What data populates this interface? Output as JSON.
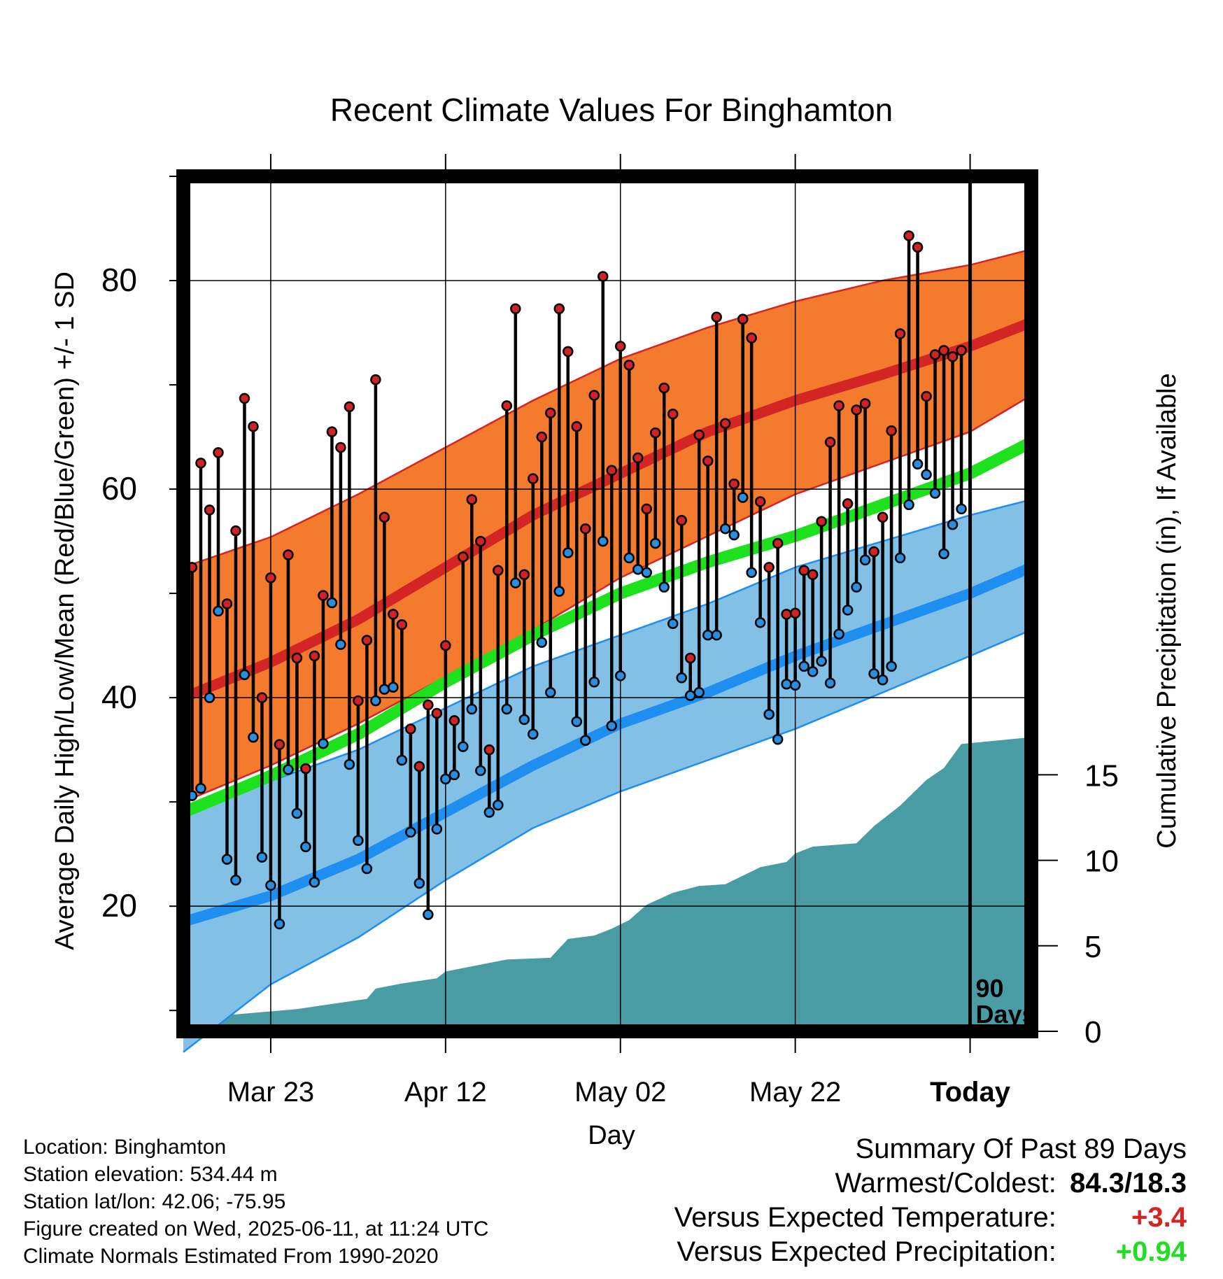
{
  "chart_data": {
    "type": "line",
    "title": "Recent Climate Values For Binghamton",
    "xlabel": "Day",
    "ylabel": "Average Daily High/Low/Mean (Red/Blue/Green) +/- 1 SD",
    "y2label": "Cumulative Precipitation (in), If Available",
    "ylim": [
      8,
      90
    ],
    "y_ticks": [
      "20",
      "40",
      "60",
      "80"
    ],
    "y2lim": [
      0,
      50
    ],
    "y2_ticks": [
      "0",
      "5",
      "10",
      "15"
    ],
    "x_start": "2025-03-13",
    "x_end": "2025-06-18",
    "x_ticks": [
      {
        "date": "2025-03-23",
        "label": "Mar 23"
      },
      {
        "date": "2025-04-12",
        "label": "Apr 12"
      },
      {
        "date": "2025-05-02",
        "label": "May 02"
      },
      {
        "date": "2025-05-22",
        "label": "May 22"
      },
      {
        "date": "2025-06-11",
        "label": "Today"
      }
    ],
    "today_marker": {
      "date": "2025-06-11",
      "label_line1": "90",
      "label_line2": "Days"
    },
    "colors": {
      "high_band": "#f47a2e",
      "high_line": "#d42525",
      "low_band": "#82c0e6",
      "low_line": "#1e8ef0",
      "mean_line": "#1de11d",
      "precip": "#4a9ca4",
      "high_point": "#d02424",
      "low_point": "#2a8ee0"
    },
    "normals": {
      "dates": [
        "2025-03-13",
        "2025-03-23",
        "2025-04-02",
        "2025-04-12",
        "2025-04-22",
        "2025-05-02",
        "2025-05-12",
        "2025-05-22",
        "2025-06-01",
        "2025-06-11",
        "2025-06-18"
      ],
      "high_upper": [
        52.5,
        55.4,
        59.5,
        64.0,
        68.5,
        72.5,
        75.5,
        78.0,
        80.0,
        81.5,
        83.0
      ],
      "high_mean": [
        40.0,
        43.4,
        47.5,
        52.5,
        57.5,
        61.5,
        65.5,
        68.5,
        71.0,
        73.7,
        76.0
      ],
      "high_lower": [
        30.0,
        33.5,
        37.5,
        42.0,
        46.5,
        51.5,
        55.5,
        59.5,
        62.5,
        65.5,
        69.0
      ],
      "mean": [
        29.0,
        32.5,
        36.5,
        41.5,
        46.0,
        50.0,
        53.0,
        55.5,
        58.5,
        61.5,
        64.5
      ],
      "low_upper": [
        29.0,
        32.0,
        35.0,
        39.0,
        43.0,
        46.0,
        49.0,
        52.5,
        55.0,
        57.5,
        59.0
      ],
      "low_mean": [
        18.5,
        21.0,
        24.5,
        29.0,
        33.5,
        37.5,
        40.5,
        44.0,
        47.0,
        50.0,
        52.5
      ],
      "low_lower": [
        6.0,
        12.5,
        17.0,
        22.5,
        27.5,
        31.0,
        34.0,
        37.0,
        40.5,
        44.0,
        46.5
      ]
    },
    "series": [
      {
        "name": "High",
        "values": [
          52.5,
          62.5,
          58,
          63.5,
          49,
          56,
          68.7,
          66,
          40,
          51.5,
          35.5,
          53.7,
          43.8,
          33.2,
          44,
          49.8,
          65.5,
          64,
          67.9,
          39.7,
          45.5,
          70.5,
          57.3,
          48,
          47,
          37,
          33.4,
          39.3,
          38.5,
          45,
          37.8,
          53.5,
          59,
          55,
          35,
          52.2,
          68,
          77.3,
          51.8,
          61,
          65,
          67.3,
          77.3,
          73.2,
          66,
          56.2,
          69,
          80.4,
          61.8,
          73.7,
          71.9,
          63,
          58.1,
          65.4,
          69.7,
          67.2,
          57,
          43.8,
          65.2,
          62.7,
          76.5,
          66.3,
          60.5,
          76.3,
          74.5,
          58.8,
          52.5,
          54.8,
          48,
          48.1,
          52.2,
          51.8,
          56.9,
          64.5,
          68,
          58.6,
          67.6,
          68.2,
          54,
          57.3,
          65.6,
          74.9,
          84.3,
          83.2,
          68.9,
          72.9,
          73.3,
          72.7,
          73.3
        ]
      },
      {
        "name": "Low",
        "values": [
          30.6,
          31.3,
          40,
          48.3,
          24.5,
          22.5,
          42.2,
          36.2,
          24.7,
          22,
          18.3,
          33.1,
          28.9,
          25.7,
          22.3,
          35.6,
          49.1,
          45.1,
          33.6,
          26.3,
          23.6,
          39.7,
          40.8,
          41,
          34,
          27.1,
          22.2,
          19.2,
          27.4,
          32.2,
          32.6,
          35.3,
          38.9,
          33,
          29,
          29.7,
          38.9,
          51,
          37.9,
          36.5,
          45.3,
          40.5,
          50.2,
          53.9,
          37.7,
          35.9,
          41.5,
          55,
          37.3,
          42.1,
          53.4,
          52.3,
          52,
          54.8,
          50.6,
          47.1,
          41.9,
          40.2,
          40.5,
          46,
          46,
          56.2,
          55.6,
          59.2,
          52,
          47.2,
          38.4,
          36,
          41.3,
          41.2,
          43,
          42.5,
          43.5,
          41.4,
          46.1,
          48.4,
          50.6,
          53.2,
          42.3,
          41.7,
          43,
          53.4,
          58.5,
          62.4,
          61.4,
          59.6,
          53.8,
          56.6,
          58.1
        ]
      }
    ],
    "precip": {
      "dates": [
        "2025-03-13",
        "2025-03-16",
        "2025-03-17",
        "2025-03-26",
        "2025-03-30",
        "2025-04-03",
        "2025-04-04",
        "2025-04-07",
        "2025-04-11",
        "2025-04-12",
        "2025-04-15",
        "2025-04-19",
        "2025-04-24",
        "2025-04-26",
        "2025-04-29",
        "2025-05-01",
        "2025-05-03",
        "2025-05-05",
        "2025-05-08",
        "2025-05-11",
        "2025-05-14",
        "2025-05-16",
        "2025-05-18",
        "2025-05-21",
        "2025-05-22",
        "2025-05-24",
        "2025-05-29",
        "2025-05-31",
        "2025-06-03",
        "2025-06-06",
        "2025-06-08",
        "2025-06-10",
        "2025-06-18"
      ],
      "values": [
        0,
        0,
        0.9,
        1.3,
        1.6,
        1.9,
        2.5,
        2.8,
        3.1,
        3.5,
        3.8,
        4.2,
        4.3,
        5.4,
        5.6,
        6,
        6.5,
        7.4,
        8.1,
        8.5,
        8.6,
        9.1,
        9.6,
        9.9,
        10.4,
        10.8,
        11.0,
        12.0,
        13.2,
        14.7,
        15.4,
        16.8,
        17.2
      ]
    }
  },
  "footer": {
    "location": "Location: Binghamton",
    "elevation": "Station elevation: 534.44 m",
    "latlon": "Station lat/lon: 42.06; -75.95",
    "created": "Figure created on Wed, 2025-06-11, at 11:24 UTC",
    "normals": "Climate Normals Estimated From 1990-2020"
  },
  "summary": {
    "title": "Summary Of Past 89 Days",
    "warmest_coldest_label": "Warmest/Coldest:",
    "warmest_coldest_value": "84.3/18.3",
    "temp_label": "Versus Expected Temperature:",
    "temp_value": "+3.4",
    "temp_color": "#d42525",
    "precip_label": "Versus Expected Precipitation:",
    "precip_value": "+0.94",
    "precip_color": "#22dd22"
  }
}
